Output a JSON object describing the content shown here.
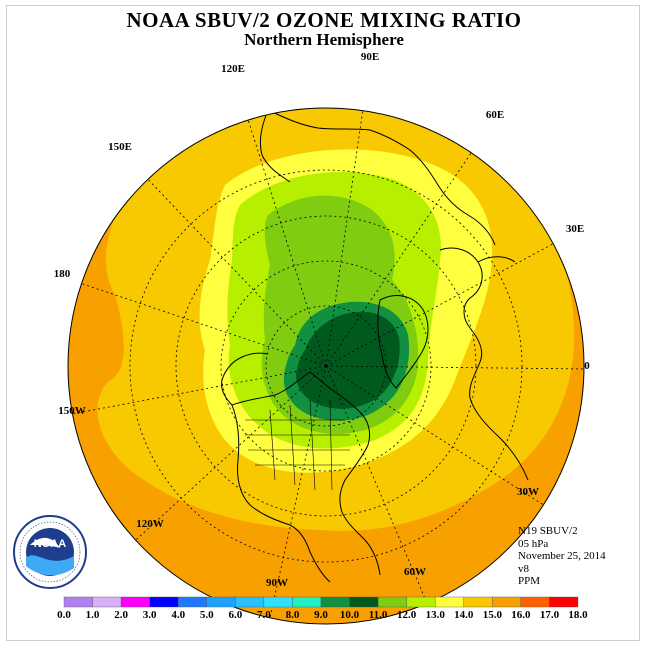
{
  "title": "NOAA SBUV/2 OZONE MIXING RATIO",
  "subtitle": "Northern Hemisphere",
  "longitude_labels": [
    {
      "key": "90E",
      "text": "90E"
    },
    {
      "key": "60E",
      "text": "60E"
    },
    {
      "key": "30E",
      "text": "30E"
    },
    {
      "key": "0",
      "text": "0"
    },
    {
      "key": "30W",
      "text": "30W"
    },
    {
      "key": "60W",
      "text": "60W"
    },
    {
      "key": "90W",
      "text": "90W"
    },
    {
      "key": "120W",
      "text": "120W"
    },
    {
      "key": "150W",
      "text": "150W"
    },
    {
      "key": "180",
      "text": "180"
    },
    {
      "key": "150E",
      "text": "150E"
    },
    {
      "key": "120E",
      "text": "120E"
    }
  ],
  "info": {
    "instrument": "N19 SBUV/2",
    "level": "05 hPa",
    "date": "November 25, 2014",
    "version": "v8",
    "unit": "PPM"
  },
  "logo": {
    "text": "NOAA",
    "ring_text": "NATIONAL OCEANIC AND ATMOSPHERIC ADMINISTRATION · U.S. DEPARTMENT OF COMMERCE"
  },
  "legend": {
    "ticks": [
      "0.0",
      "1.0",
      "2.0",
      "3.0",
      "4.0",
      "5.0",
      "6.0",
      "7.0",
      "8.0",
      "9.0",
      "10.0",
      "11.0",
      "12.0",
      "13.0",
      "14.0",
      "15.0",
      "16.0",
      "17.0",
      "18.0"
    ],
    "colors": [
      "#b080f0",
      "#d8b0f8",
      "#ff00ff",
      "#0000ff",
      "#1e78ff",
      "#1ea0ff",
      "#28c0ff",
      "#30e0ff",
      "#20f0c0",
      "#109040",
      "#005a1e",
      "#7fcc10",
      "#b6f000",
      "#ffff40",
      "#f8c800",
      "#f8a000",
      "#ff6000",
      "#ff0000",
      "#8a5a3c"
    ]
  },
  "map_colors": {
    "orange": "#f8a000",
    "gold": "#f8c800",
    "yellow": "#ffff40",
    "lime": "#b6f000",
    "green": "#7fcc10",
    "dark_green": "#109040",
    "darkest_green": "#005a1e"
  }
}
